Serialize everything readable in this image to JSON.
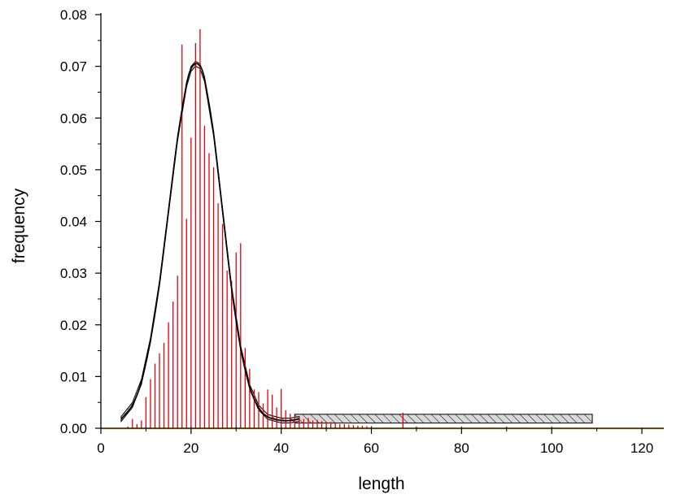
{
  "chart_data": {
    "type": "bar",
    "title": "",
    "xlabel": "length",
    "ylabel": "frequency",
    "xlim": [
      0,
      125
    ],
    "ylim": [
      0,
      0.08
    ],
    "x_ticks": [
      "0",
      "20",
      "40",
      "60",
      "80",
      "100",
      "120"
    ],
    "y_ticks": [
      "0.00",
      "0.01",
      "0.02",
      "0.03",
      "0.04",
      "0.05",
      "0.06",
      "0.07",
      "0.08"
    ],
    "grid": false,
    "legend": "none",
    "series": [
      {
        "style": "bars",
        "color": "#e8000b",
        "x": [
          7,
          8,
          9,
          10,
          11,
          12,
          13,
          14,
          15,
          16,
          17,
          18,
          19,
          20,
          21,
          22,
          23,
          24,
          25,
          26,
          27,
          28,
          29,
          30,
          31,
          32,
          33,
          34,
          35,
          36,
          37,
          38,
          39,
          40,
          41,
          42,
          43,
          44,
          45,
          46,
          47,
          48,
          49,
          50,
          51,
          52,
          53,
          54,
          55,
          56,
          57,
          58,
          59,
          60,
          67
        ],
        "values": [
          0.0018,
          0.0008,
          0.0015,
          0.006,
          0.0095,
          0.0125,
          0.0145,
          0.0165,
          0.0205,
          0.0245,
          0.0295,
          0.0742,
          0.0405,
          0.0562,
          0.0745,
          0.0772,
          0.0585,
          0.0532,
          0.0505,
          0.0435,
          0.0395,
          0.0305,
          0.0285,
          0.034,
          0.0358,
          0.0155,
          0.0115,
          0.0075,
          0.007,
          0.0048,
          0.0075,
          0.0065,
          0.004,
          0.0076,
          0.0035,
          0.0028,
          0.0024,
          0.0022,
          0.0018,
          0.002,
          0.0015,
          0.0016,
          0.0014,
          0.0012,
          0.0012,
          0.001,
          0.0008,
          0.0008,
          0.0007,
          0.0006,
          0.0005,
          0.0005,
          0.0004,
          0.0004,
          0.003
        ]
      },
      {
        "style": "fitted-curve",
        "color": "#000000",
        "confidence_band": true,
        "x": [
          4.5,
          7,
          9,
          11,
          13,
          15,
          17,
          19,
          20,
          21,
          22,
          23,
          25,
          27,
          29,
          31,
          33,
          35,
          37,
          40,
          42,
          44
        ],
        "values": [
          0.0018,
          0.0045,
          0.009,
          0.017,
          0.028,
          0.042,
          0.056,
          0.0665,
          0.0695,
          0.0705,
          0.07,
          0.0675,
          0.057,
          0.042,
          0.027,
          0.0155,
          0.008,
          0.004,
          0.0022,
          0.0015,
          0.0015,
          0.0018
        ]
      },
      {
        "style": "hatched-band",
        "color": "#000000",
        "x_range": [
          43,
          109
        ],
        "y_range": [
          0.001,
          0.0027
        ]
      },
      {
        "style": "bars",
        "color": "#0000cc",
        "x": [
          6,
          10,
          20,
          30,
          40,
          50,
          60,
          70,
          80,
          90,
          100
        ],
        "values": [
          0.0002,
          0.0002,
          0.0002,
          0.0002,
          0.0002,
          0.0002,
          0.0002,
          0.0002,
          0.0002,
          0.0002,
          0.0002
        ]
      },
      {
        "style": "baseline",
        "color": "#e6a800",
        "x_range": [
          0,
          125
        ],
        "y": 0.0
      }
    ]
  }
}
